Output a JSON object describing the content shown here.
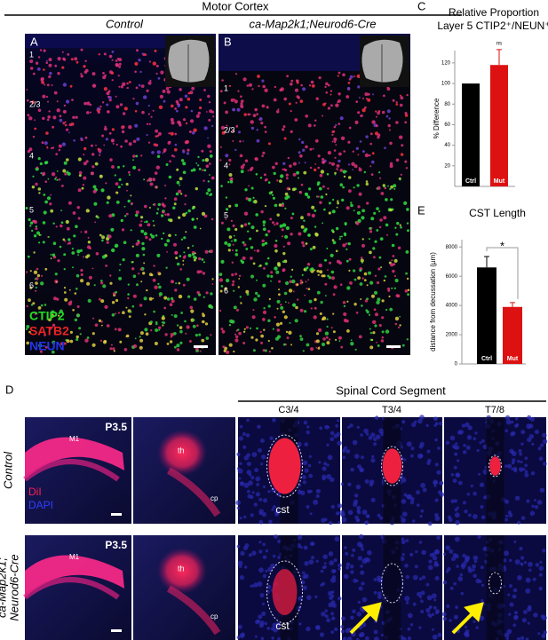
{
  "header": {
    "title": "Motor Cortex",
    "columns": [
      "Control",
      "ca-Map2k1;Neurod6-Cre"
    ]
  },
  "panels": {
    "A": {
      "label": "A",
      "layers": [
        "1",
        "2/3",
        "4",
        "5",
        "6"
      ]
    },
    "B": {
      "label": "B",
      "layers": [
        "1",
        "2/3",
        "4",
        "5",
        "6"
      ]
    },
    "legend": [
      {
        "text": "CTIP2",
        "color": "#22dd22"
      },
      {
        "text": "SATB2",
        "color": "#ee2222"
      },
      {
        "text": "NEUN",
        "color": "#2233ee"
      }
    ]
  },
  "panel_d": {
    "label": "D",
    "header": "Spinal Cord Segment",
    "segments": [
      "C3/4",
      "T3/4",
      "T7/8"
    ],
    "stain": [
      "DiI",
      "DAPI"
    ],
    "rows": [
      {
        "label": [
          "Control"
        ],
        "age": "P3.5",
        "regions": [
          "M1",
          "th",
          "cp",
          "cst"
        ]
      },
      {
        "label": [
          "ca-Map2k1;",
          "Neurod6-Cre"
        ],
        "age": "P3.5",
        "regions": [
          "M1",
          "th",
          "cp",
          "cst"
        ]
      }
    ]
  },
  "chart_data": [
    {
      "type": "bar",
      "panel_label": "C",
      "title": "Relative Proportion",
      "subtitle": "Layer 5 CTIP2⁺/NEUN⁺",
      "y_label": "% Difference",
      "categories": [
        "Ctrl",
        "Mut"
      ],
      "values": [
        100,
        118
      ],
      "errors": [
        null,
        15
      ],
      "colors": [
        "#000000",
        "#dd1111"
      ],
      "ylim": [
        0,
        132
      ],
      "yticks": [
        20,
        40,
        60,
        80,
        100,
        120
      ],
      "annotation": "ns"
    },
    {
      "type": "bar",
      "panel_label": "E",
      "title": "CST Length",
      "y_label": "distance from decussation (µm)",
      "categories": [
        "Ctrl",
        "Mut"
      ],
      "values": [
        6600,
        3900
      ],
      "errors": [
        750,
        300
      ],
      "colors": [
        "#000000",
        "#dd1111"
      ],
      "ylim": [
        0,
        8500
      ],
      "yticks": [
        0,
        2000,
        4000,
        6000,
        8000
      ],
      "annotation": "*"
    }
  ]
}
